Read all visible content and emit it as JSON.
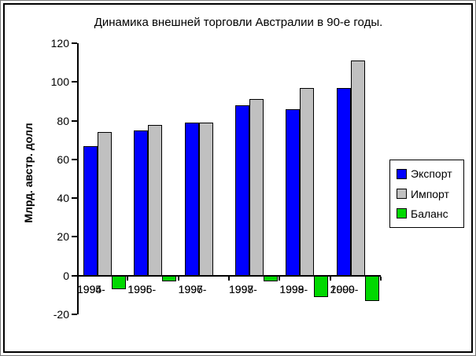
{
  "window": {
    "background": "#FFFFFF",
    "border_color": "#000000"
  },
  "chart_data": {
    "type": "bar",
    "title": "Динамика внешней торговли Австралии в 90-е годы.",
    "ylabel": "Млрд. австр. долл",
    "xlabel": "",
    "categories": [
      "1994-1995",
      "1995-1996",
      "1996-1997",
      "1997-1998",
      "1998-1999",
      "1999-2000"
    ],
    "series": [
      {
        "key": "export",
        "name": "Экспорт",
        "color": "#0000FF",
        "values": [
          67,
          75,
          79,
          88,
          86,
          97
        ]
      },
      {
        "key": "import",
        "name": "Импорт",
        "color": "#C0C0C0",
        "values": [
          74,
          78,
          79,
          91,
          97,
          111
        ]
      },
      {
        "key": "balance",
        "name": "Баланс",
        "color": "#00D800",
        "values": [
          -7,
          -3,
          0,
          -3,
          -11,
          -13
        ]
      }
    ],
    "ylim": [
      -20,
      120
    ],
    "yticks": [
      120,
      100,
      80,
      60,
      40,
      20,
      0,
      -20
    ],
    "grid": false,
    "legend_position": "right",
    "axis_color": "#000000",
    "bar_border_color": "#000000"
  }
}
